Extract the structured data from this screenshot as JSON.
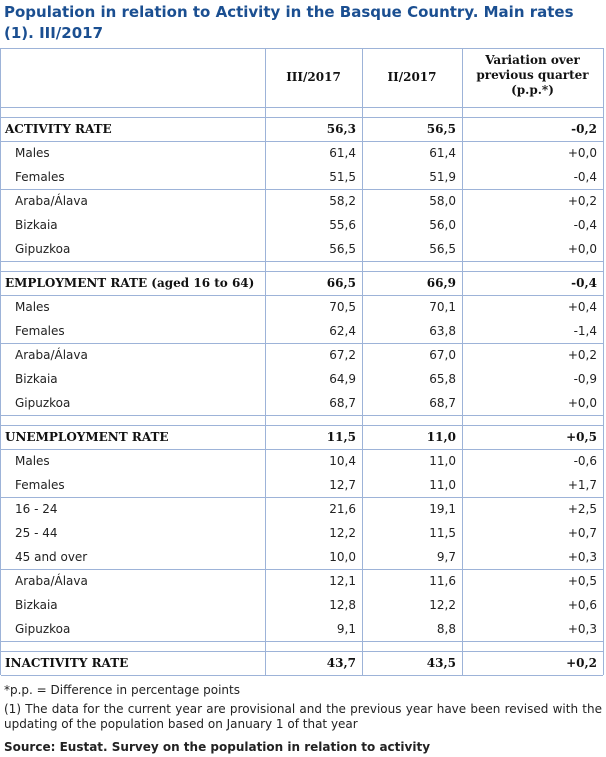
{
  "title": "Population in relation to Activity in the Basque Country. Main rates (1). III/2017",
  "table": {
    "header": [
      "III/2017",
      "II/2017",
      [
        "Variation over",
        "previous quarter",
        "(p.p.*)"
      ]
    ],
    "sections": [
      {
        "label": "ACTIVITY RATE",
        "values": [
          "56,3",
          "56,5",
          "-0,2"
        ],
        "groups": [
          [
            {
              "label": "Males",
              "values": [
                "61,4",
                "61,4",
                "+0,0"
              ]
            },
            {
              "label": "Females",
              "values": [
                "51,5",
                "51,9",
                "-0,4"
              ]
            }
          ],
          [
            {
              "label": "Araba/Álava",
              "values": [
                "58,2",
                "58,0",
                "+0,2"
              ]
            },
            {
              "label": "Bizkaia",
              "values": [
                "55,6",
                "56,0",
                "-0,4"
              ]
            },
            {
              "label": "Gipuzkoa",
              "values": [
                "56,5",
                "56,5",
                "+0,0"
              ]
            }
          ]
        ]
      },
      {
        "label": "EMPLOYMENT RATE (aged 16 to 64)",
        "values": [
          "66,5",
          "66,9",
          "-0,4"
        ],
        "groups": [
          [
            {
              "label": "Males",
              "values": [
                "70,5",
                "70,1",
                "+0,4"
              ]
            },
            {
              "label": "Females",
              "values": [
                "62,4",
                "63,8",
                "-1,4"
              ]
            }
          ],
          [
            {
              "label": "Araba/Álava",
              "values": [
                "67,2",
                "67,0",
                "+0,2"
              ]
            },
            {
              "label": "Bizkaia",
              "values": [
                "64,9",
                "65,8",
                "-0,9"
              ]
            },
            {
              "label": "Gipuzkoa",
              "values": [
                "68,7",
                "68,7",
                "+0,0"
              ]
            }
          ]
        ]
      },
      {
        "label": "UNEMPLOYMENT RATE",
        "values": [
          "11,5",
          "11,0",
          "+0,5"
        ],
        "groups": [
          [
            {
              "label": "Males",
              "values": [
                "10,4",
                "11,0",
                "-0,6"
              ]
            },
            {
              "label": "Females",
              "values": [
                "12,7",
                "11,0",
                "+1,7"
              ]
            }
          ],
          [
            {
              "label": "16 - 24",
              "values": [
                "21,6",
                "19,1",
                "+2,5"
              ]
            },
            {
              "label": "25 - 44",
              "values": [
                "12,2",
                "11,5",
                "+0,7"
              ]
            },
            {
              "label": "45 and over",
              "values": [
                "10,0",
                "9,7",
                "+0,3"
              ]
            }
          ],
          [
            {
              "label": "Araba/Álava",
              "values": [
                "12,1",
                "11,6",
                "+0,5"
              ]
            },
            {
              "label": "Bizkaia",
              "values": [
                "12,8",
                "12,2",
                "+0,6"
              ]
            },
            {
              "label": "Gipuzkoa",
              "values": [
                "9,1",
                "8,8",
                "+0,3"
              ]
            }
          ]
        ]
      },
      {
        "label": "INACTIVITY RATE",
        "values": [
          "43,7",
          "43,5",
          "+0,2"
        ],
        "groups": []
      }
    ]
  },
  "notes": [
    "*p.p. = Difference in percentage points",
    "(1) The data for the current year are provisional and the previous year have been revised with the updating of the population based on January 1 of that year"
  ],
  "source": "Source: Eustat. Survey on the population in relation to activity"
}
